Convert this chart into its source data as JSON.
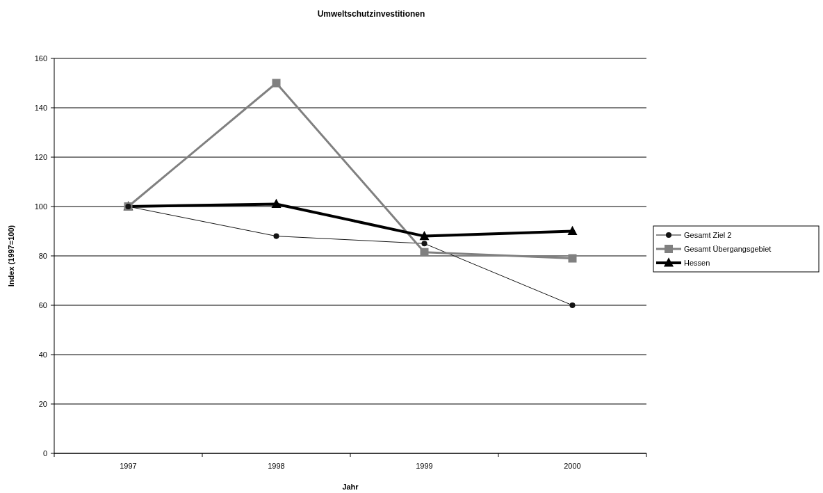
{
  "chart_data": {
    "type": "line",
    "title": "Umweltschutzinvestitionen",
    "xlabel": "Jahr",
    "ylabel": "Index (1997=100)",
    "categories": [
      "1997",
      "1998",
      "1999",
      "2000"
    ],
    "series": [
      {
        "name": "Gesamt Ziel 2",
        "color": "#141414",
        "marker": "circle",
        "values": [
          100,
          88,
          85,
          60
        ]
      },
      {
        "name": "Gesamt Übergangsgebiet",
        "color": "#808080",
        "marker": "square",
        "values": [
          100,
          150,
          81.5,
          79
        ]
      },
      {
        "name": "Hessen",
        "color": "#000000",
        "marker": "triangle",
        "values": [
          100,
          101,
          88,
          90
        ]
      }
    ],
    "ylim": [
      0,
      160
    ],
    "yticks": [
      0,
      20,
      40,
      60,
      80,
      100,
      120,
      140,
      160
    ],
    "grid": "y",
    "legend": "right"
  }
}
